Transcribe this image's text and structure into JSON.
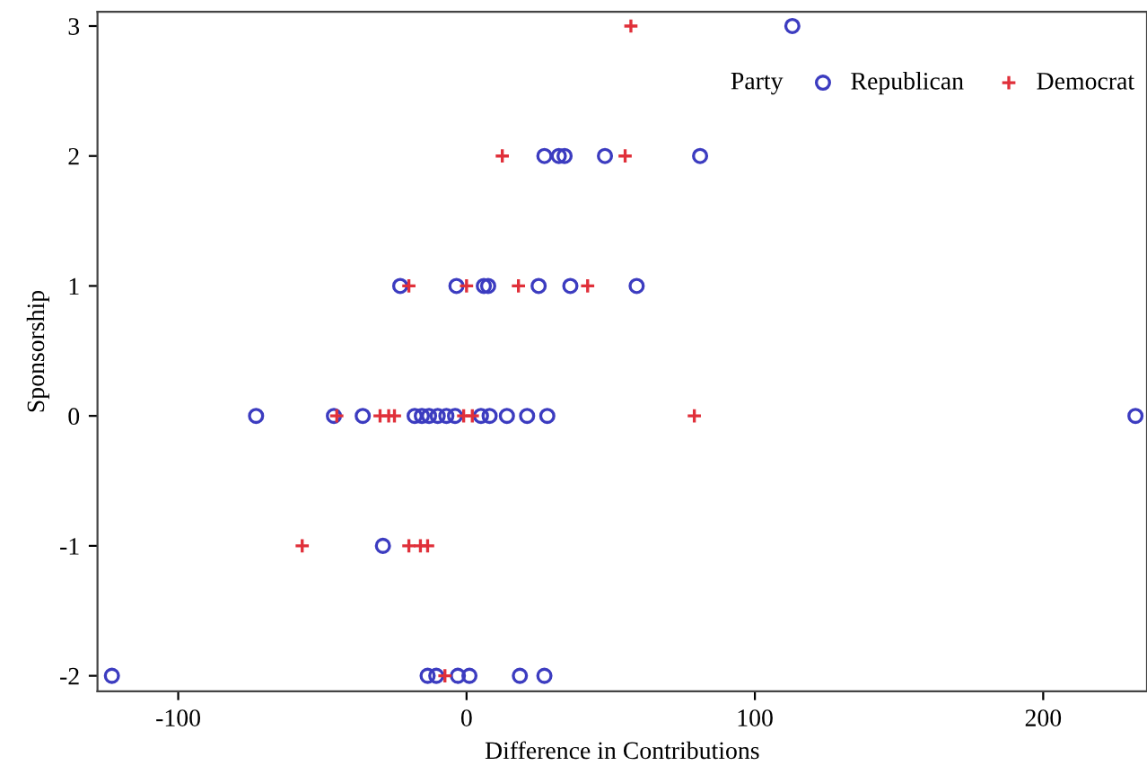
{
  "chart_data": {
    "type": "scatter",
    "xlabel": "Difference in Contributions",
    "ylabel": "Sponsorship",
    "legend_title": "Party",
    "legend": "top right",
    "grid": false,
    "xlim": [
      -128,
      236
    ],
    "ylim": [
      -2.12,
      3.11
    ],
    "xticks": [
      -100,
      0,
      100,
      200
    ],
    "yticks": [
      -2,
      -1,
      0,
      1,
      2,
      3
    ],
    "series": [
      {
        "name": "Republican",
        "color": "#3c3cc0",
        "marker": "circle",
        "x": [
          113,
          27,
          32,
          34,
          48,
          81,
          -23,
          -3.5,
          -2,
          6,
          7.5,
          25,
          36,
          59,
          -73,
          -46,
          -36,
          -18,
          -15.5,
          -13,
          -10,
          -7,
          -4,
          5,
          8,
          14,
          21,
          28,
          232,
          -29,
          -123,
          -13.5,
          -10.5,
          -3,
          1,
          18.5,
          27
        ],
        "values": [
          3,
          2,
          2,
          2,
          2,
          2,
          1,
          1,
          null,
          1,
          1,
          1,
          1,
          1,
          0,
          0,
          0,
          0,
          0,
          0,
          0,
          0,
          0,
          0,
          0,
          0,
          0,
          0,
          0,
          -1,
          -2,
          -2,
          -2,
          -2,
          -2,
          -2,
          -2
        ]
      },
      {
        "name": "Democrat",
        "color": "#e0303a",
        "marker": "cross",
        "x": [
          57,
          12.4,
          55,
          -20,
          0,
          18,
          42,
          -45,
          -30,
          -27,
          -25,
          -1,
          2,
          79,
          -57,
          -20,
          -16,
          -13.5,
          -7.5
        ],
        "values": [
          3,
          2,
          2,
          1,
          1,
          1,
          1,
          0,
          0,
          0,
          0,
          0,
          0,
          0,
          -1,
          -1,
          -1,
          -1,
          -2
        ]
      }
    ]
  }
}
